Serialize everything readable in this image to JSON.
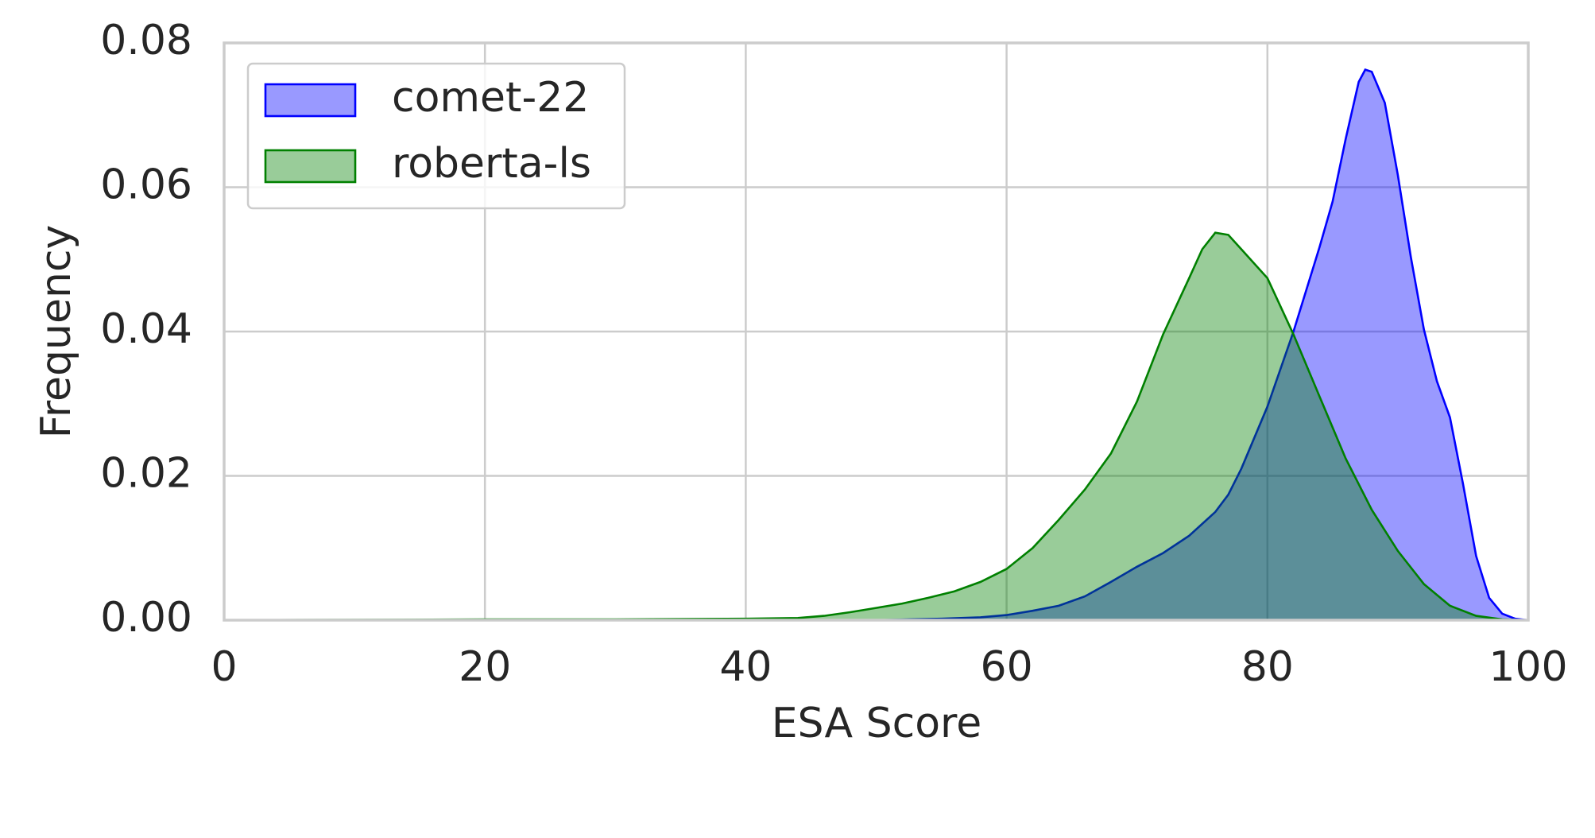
{
  "chart_data": {
    "type": "area",
    "x_label": "ESA Score",
    "y_label": "Frequency",
    "xlim": [
      0,
      100
    ],
    "ylim": [
      0,
      0.08
    ],
    "xticks": [
      0,
      20,
      40,
      60,
      80,
      100
    ],
    "yticks": [
      {
        "value": 0,
        "label": "0.00"
      },
      {
        "value": 0.02,
        "label": "0.02"
      },
      {
        "value": 0.04,
        "label": "0.04"
      },
      {
        "value": 0.06,
        "label": "0.06"
      },
      {
        "value": 0.08,
        "label": "0.08"
      }
    ],
    "grid": true,
    "legend": "upper left",
    "series": [
      {
        "name": "comet-22",
        "color": "#0000ff",
        "x": [
          0,
          50,
          55,
          58,
          60,
          62,
          64,
          66,
          68,
          70,
          72,
          74,
          76,
          77,
          78,
          80,
          82,
          84,
          85,
          86,
          87,
          87.5,
          88,
          89,
          90,
          91,
          92,
          93,
          94,
          95,
          96,
          97,
          98,
          99,
          100
        ],
        "values": [
          0,
          0,
          0.0002,
          0.0004,
          0.0007,
          0.0013,
          0.002,
          0.0033,
          0.0053,
          0.0074,
          0.0093,
          0.0117,
          0.015,
          0.0174,
          0.021,
          0.0296,
          0.04,
          0.0517,
          0.058,
          0.0667,
          0.0746,
          0.0763,
          0.076,
          0.0717,
          0.0617,
          0.0503,
          0.0403,
          0.0331,
          0.0281,
          0.0189,
          0.0089,
          0.0031,
          0.0009,
          0.0002,
          0
        ]
      },
      {
        "name": "roberta-ls",
        "color": "#008000",
        "x": [
          0,
          20,
          30,
          40,
          44,
          46,
          48,
          50,
          52,
          54,
          56,
          58,
          60,
          62,
          64,
          66,
          68,
          70,
          72,
          74,
          75,
          76,
          77,
          78,
          80,
          82,
          84,
          86,
          88,
          90,
          92,
          94,
          96,
          98,
          100
        ],
        "values": [
          0,
          0.0001,
          0.0001,
          0.0002,
          0.0003,
          0.0006,
          0.0011,
          0.0017,
          0.0023,
          0.0031,
          0.004,
          0.0053,
          0.0071,
          0.01,
          0.0139,
          0.0181,
          0.0231,
          0.0303,
          0.0396,
          0.0474,
          0.0514,
          0.0537,
          0.0534,
          0.0514,
          0.0474,
          0.0396,
          0.031,
          0.0224,
          0.0153,
          0.0096,
          0.005,
          0.002,
          0.0006,
          0.0001,
          0
        ]
      }
    ]
  }
}
